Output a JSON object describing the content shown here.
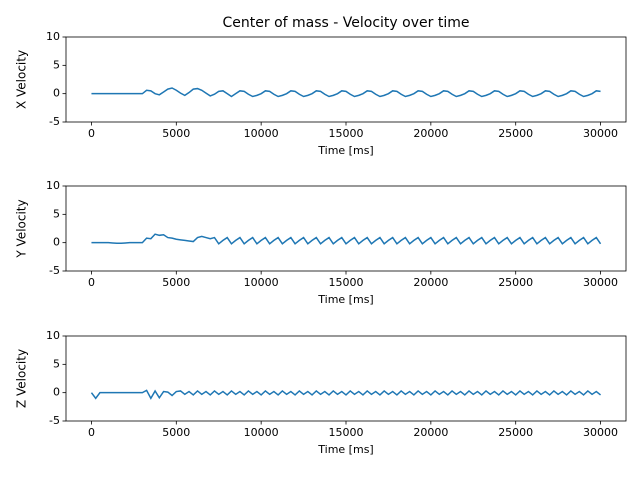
{
  "chart_data": [
    {
      "type": "line",
      "title": "Center of mass - Velocity over time",
      "xlabel": "Time [ms]",
      "ylabel": "X Velocity",
      "xlim": [
        -1500,
        31500
      ],
      "ylim": [
        -5,
        10
      ],
      "xticks": [
        0,
        5000,
        10000,
        15000,
        20000,
        25000,
        30000
      ],
      "yticks": [
        -5,
        0,
        5,
        10
      ],
      "x": [
        0,
        250,
        500,
        750,
        1000,
        1250,
        1500,
        1750,
        2000,
        2250,
        2500,
        2750,
        3000,
        3250,
        3500,
        3750,
        4000,
        4250,
        4500,
        4750,
        5000,
        5250,
        5500,
        5750,
        6000,
        6250,
        6500,
        6750,
        7000,
        7250,
        7500,
        7750,
        8000,
        8250,
        8500,
        8750,
        9000,
        9250,
        9500,
        9750,
        10000,
        10250,
        10500,
        10750,
        11000,
        11250,
        11500,
        11750,
        12000,
        12250,
        12500,
        12750,
        13000,
        13250,
        13500,
        13750,
        14000,
        14250,
        14500,
        14750,
        15000,
        15250,
        15500,
        15750,
        16000,
        16250,
        16500,
        16750,
        17000,
        17250,
        17500,
        17750,
        18000,
        18250,
        18500,
        18750,
        19000,
        19250,
        19500,
        19750,
        20000,
        20250,
        20500,
        20750,
        21000,
        21250,
        21500,
        21750,
        22000,
        22250,
        22500,
        22750,
        23000,
        23250,
        23500,
        23750,
        24000,
        24250,
        24500,
        24750,
        25000,
        25250,
        25500,
        25750,
        26000,
        26250,
        26500,
        26750,
        27000,
        27250,
        27500,
        27750,
        28000,
        28250,
        28500,
        28750,
        29000,
        29250,
        29500,
        29750,
        30000
      ],
      "values": [
        0,
        0,
        0,
        0,
        0,
        0,
        0,
        0,
        0,
        0,
        0,
        0,
        0,
        0.6,
        0.5,
        0,
        -0.2,
        0.3,
        0.8,
        1.0,
        0.6,
        0.1,
        -0.3,
        0.2,
        0.8,
        0.9,
        0.6,
        0.1,
        -0.4,
        -0.1,
        0.4,
        0.5,
        0,
        -0.5,
        0,
        0.5,
        0.4,
        -0.1,
        -0.5,
        -0.3,
        0,
        0.5,
        0.4,
        -0.1,
        -0.5,
        -0.3,
        0,
        0.5,
        0.4,
        -0.1,
        -0.5,
        -0.3,
        0,
        0.5,
        0.4,
        -0.1,
        -0.5,
        -0.3,
        0,
        0.5,
        0.4,
        -0.1,
        -0.5,
        -0.3,
        0,
        0.5,
        0.4,
        -0.1,
        -0.5,
        -0.3,
        0,
        0.5,
        0.4,
        -0.1,
        -0.5,
        -0.3,
        0,
        0.5,
        0.4,
        -0.1,
        -0.5,
        -0.3,
        0,
        0.5,
        0.4,
        -0.1,
        -0.5,
        -0.3,
        0,
        0.5,
        0.4,
        -0.1,
        -0.5,
        -0.3,
        0,
        0.5,
        0.4,
        -0.1,
        -0.5,
        -0.3,
        0,
        0.5,
        0.4,
        -0.1,
        -0.5,
        -0.3,
        0,
        0.5,
        0.4,
        -0.1,
        -0.5,
        -0.3,
        0,
        0.5,
        0.4,
        -0.1,
        -0.5,
        -0.3,
        0,
        0.5,
        0.4
      ],
      "color": "#1f77b4"
    },
    {
      "type": "line",
      "xlabel": "Time [ms]",
      "ylabel": "Y Velocity",
      "xlim": [
        -1500,
        31500
      ],
      "ylim": [
        -5,
        10
      ],
      "xticks": [
        0,
        5000,
        10000,
        15000,
        20000,
        25000,
        30000
      ],
      "yticks": [
        -5,
        0,
        5,
        10
      ],
      "x": [
        0,
        250,
        500,
        750,
        1000,
        1250,
        1500,
        1750,
        2000,
        2250,
        2500,
        2750,
        3000,
        3250,
        3500,
        3750,
        4000,
        4250,
        4500,
        4750,
        5000,
        5250,
        5500,
        5750,
        6000,
        6250,
        6500,
        6750,
        7000,
        7250,
        7500,
        7750,
        8000,
        8250,
        8500,
        8750,
        9000,
        9250,
        9500,
        9750,
        10000,
        10250,
        10500,
        10750,
        11000,
        11250,
        11500,
        11750,
        12000,
        12250,
        12500,
        12750,
        13000,
        13250,
        13500,
        13750,
        14000,
        14250,
        14500,
        14750,
        15000,
        15250,
        15500,
        15750,
        16000,
        16250,
        16500,
        16750,
        17000,
        17250,
        17500,
        17750,
        18000,
        18250,
        18500,
        18750,
        19000,
        19250,
        19500,
        19750,
        20000,
        20250,
        20500,
        20750,
        21000,
        21250,
        21500,
        21750,
        22000,
        22250,
        22500,
        22750,
        23000,
        23250,
        23500,
        23750,
        24000,
        24250,
        24500,
        24750,
        25000,
        25250,
        25500,
        25750,
        26000,
        26250,
        26500,
        26750,
        27000,
        27250,
        27500,
        27750,
        28000,
        28250,
        28500,
        28750,
        29000,
        29250,
        29500,
        29750,
        30000
      ],
      "values": [
        0,
        0,
        0,
        0,
        0,
        -0.05,
        -0.1,
        -0.1,
        -0.05,
        0,
        0,
        0,
        0,
        0.8,
        0.7,
        1.5,
        1.3,
        1.4,
        0.9,
        0.8,
        0.6,
        0.5,
        0.4,
        0.3,
        0.2,
        0.9,
        1.1,
        0.9,
        0.7,
        0.9,
        -0.2,
        0.4,
        0.9,
        -0.2,
        0.4,
        0.9,
        -0.2,
        0.4,
        0.9,
        -0.2,
        0.4,
        0.9,
        -0.2,
        0.4,
        0.9,
        -0.2,
        0.4,
        0.9,
        -0.2,
        0.4,
        0.9,
        -0.2,
        0.4,
        0.9,
        -0.2,
        0.4,
        0.9,
        -0.2,
        0.4,
        0.9,
        -0.2,
        0.4,
        0.9,
        -0.2,
        0.4,
        0.9,
        -0.2,
        0.4,
        0.9,
        -0.2,
        0.4,
        0.9,
        -0.2,
        0.4,
        0.9,
        -0.2,
        0.4,
        0.9,
        -0.2,
        0.4,
        0.9,
        -0.2,
        0.4,
        0.9,
        -0.2,
        0.4,
        0.9,
        -0.2,
        0.4,
        0.9,
        -0.2,
        0.4,
        0.9,
        -0.2,
        0.4,
        0.9,
        -0.2,
        0.4,
        0.9,
        -0.2,
        0.4,
        0.9,
        -0.2,
        0.4,
        0.9,
        -0.2,
        0.4,
        0.9,
        -0.2,
        0.4,
        0.9,
        -0.2,
        0.4,
        0.9,
        -0.2,
        0.4,
        0.9,
        -0.2,
        0.4,
        0.9,
        -0.2
      ],
      "color": "#1f77b4"
    },
    {
      "type": "line",
      "xlabel": "Time [ms]",
      "ylabel": "Z Velocity",
      "xlim": [
        -1500,
        31500
      ],
      "ylim": [
        -5,
        10
      ],
      "xticks": [
        0,
        5000,
        10000,
        15000,
        20000,
        25000,
        30000
      ],
      "yticks": [
        -5,
        0,
        5,
        10
      ],
      "x": [
        0,
        250,
        500,
        750,
        1000,
        1250,
        1500,
        1750,
        2000,
        2250,
        2500,
        2750,
        3000,
        3250,
        3500,
        3750,
        4000,
        4250,
        4500,
        4750,
        5000,
        5250,
        5500,
        5750,
        6000,
        6250,
        6500,
        6750,
        7000,
        7250,
        7500,
        7750,
        8000,
        8250,
        8500,
        8750,
        9000,
        9250,
        9500,
        9750,
        10000,
        10250,
        10500,
        10750,
        11000,
        11250,
        11500,
        11750,
        12000,
        12250,
        12500,
        12750,
        13000,
        13250,
        13500,
        13750,
        14000,
        14250,
        14500,
        14750,
        15000,
        15250,
        15500,
        15750,
        16000,
        16250,
        16500,
        16750,
        17000,
        17250,
        17500,
        17750,
        18000,
        18250,
        18500,
        18750,
        19000,
        19250,
        19500,
        19750,
        20000,
        20250,
        20500,
        20750,
        21000,
        21250,
        21500,
        21750,
        22000,
        22250,
        22500,
        22750,
        23000,
        23250,
        23500,
        23750,
        24000,
        24250,
        24500,
        24750,
        25000,
        25250,
        25500,
        25750,
        26000,
        26250,
        26500,
        26750,
        27000,
        27250,
        27500,
        27750,
        28000,
        28250,
        28500,
        28750,
        29000,
        29250,
        29500,
        29750,
        30000
      ],
      "values": [
        0,
        -1.0,
        0,
        0,
        0,
        0,
        0,
        0,
        0,
        0,
        0,
        0,
        0,
        0.4,
        -1.0,
        0.3,
        -0.9,
        0.2,
        0.1,
        -0.5,
        0.2,
        0.3,
        -0.3,
        0.2,
        -0.4,
        0.3,
        -0.3,
        0.2,
        -0.4,
        0.3,
        -0.3,
        0.2,
        -0.4,
        0.3,
        -0.3,
        0.2,
        -0.4,
        0.3,
        -0.3,
        0.2,
        -0.4,
        0.3,
        -0.3,
        0.2,
        -0.4,
        0.3,
        -0.3,
        0.2,
        -0.4,
        0.3,
        -0.3,
        0.2,
        -0.4,
        0.3,
        -0.3,
        0.2,
        -0.4,
        0.3,
        -0.3,
        0.2,
        -0.4,
        0.3,
        -0.3,
        0.2,
        -0.4,
        0.3,
        -0.3,
        0.2,
        -0.4,
        0.3,
        -0.3,
        0.2,
        -0.4,
        0.3,
        -0.3,
        0.2,
        -0.4,
        0.3,
        -0.3,
        0.2,
        -0.4,
        0.3,
        -0.3,
        0.2,
        -0.4,
        0.3,
        -0.3,
        0.2,
        -0.4,
        0.3,
        -0.3,
        0.2,
        -0.4,
        0.3,
        -0.3,
        0.2,
        -0.4,
        0.3,
        -0.3,
        0.2,
        -0.4,
        0.3,
        -0.3,
        0.2,
        -0.4,
        0.3,
        -0.3,
        0.2,
        -0.4,
        0.3,
        -0.3,
        0.2,
        -0.4,
        0.3,
        -0.3,
        0.2,
        -0.4,
        0.3,
        -0.3,
        0.2,
        -0.4
      ],
      "color": "#1f77b4"
    }
  ]
}
